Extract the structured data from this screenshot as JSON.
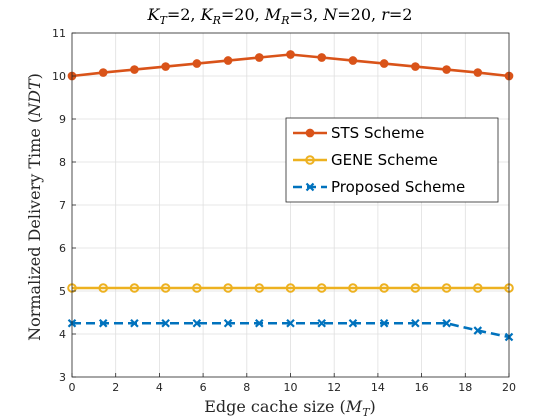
{
  "chart_data": {
    "type": "line",
    "title": "K_T=2, K_R=20, M_R=3, N=20, r=2",
    "title_parts": {
      "kt": "K",
      "kt_sub": "T",
      "kt_val": "=2, ",
      "kr": "K",
      "kr_sub": "R",
      "kr_val": "=20, ",
      "mr": "M",
      "mr_sub": "R",
      "mr_val": "=3, ",
      "n": "N",
      "n_val": "=20, ",
      "r": "r",
      "r_val": "=2"
    },
    "xlabel": "Edge cache size (M_T)",
    "xlabel_parts": {
      "text": "Edge cache size (",
      "var": "M",
      "sub": "T",
      "close": ")"
    },
    "ylabel": "Normalized Delivery Time (NDT)",
    "ylabel_parts": {
      "text": "Normalized Delivery Time (",
      "var": "NDT",
      "close": ")"
    },
    "xlim": [
      0,
      20
    ],
    "ylim": [
      3,
      11
    ],
    "xticks": [
      0,
      2,
      4,
      6,
      8,
      10,
      12,
      14,
      16,
      18,
      20
    ],
    "yticks": [
      3,
      4,
      5,
      6,
      7,
      8,
      9,
      10,
      11
    ],
    "grid": true,
    "legend_position": "right",
    "x": [
      0,
      1.4286,
      2.8571,
      4.2857,
      5.7143,
      7.1429,
      8.5714,
      10,
      11.4286,
      12.8571,
      14.2857,
      15.7143,
      17.1429,
      18.5714,
      20
    ],
    "series": [
      {
        "name": "STS Scheme",
        "color": "#D95319",
        "marker": "circle-filled",
        "dash": "solid",
        "values": [
          10.0,
          10.08,
          10.15,
          10.22,
          10.29,
          10.36,
          10.43,
          10.5,
          10.43,
          10.36,
          10.29,
          10.22,
          10.15,
          10.08,
          10.0
        ]
      },
      {
        "name": "GENE Scheme",
        "color": "#EDB120",
        "marker": "circle-open",
        "dash": "solid",
        "values": [
          5.07,
          5.07,
          5.07,
          5.07,
          5.07,
          5.07,
          5.07,
          5.07,
          5.07,
          5.07,
          5.07,
          5.07,
          5.07,
          5.07,
          5.07
        ]
      },
      {
        "name": "Proposed Scheme",
        "color": "#0072BD",
        "marker": "x",
        "dash": "dashed",
        "values": [
          4.25,
          4.25,
          4.25,
          4.25,
          4.25,
          4.25,
          4.25,
          4.25,
          4.25,
          4.25,
          4.25,
          4.25,
          4.25,
          4.08,
          3.93
        ]
      }
    ]
  }
}
